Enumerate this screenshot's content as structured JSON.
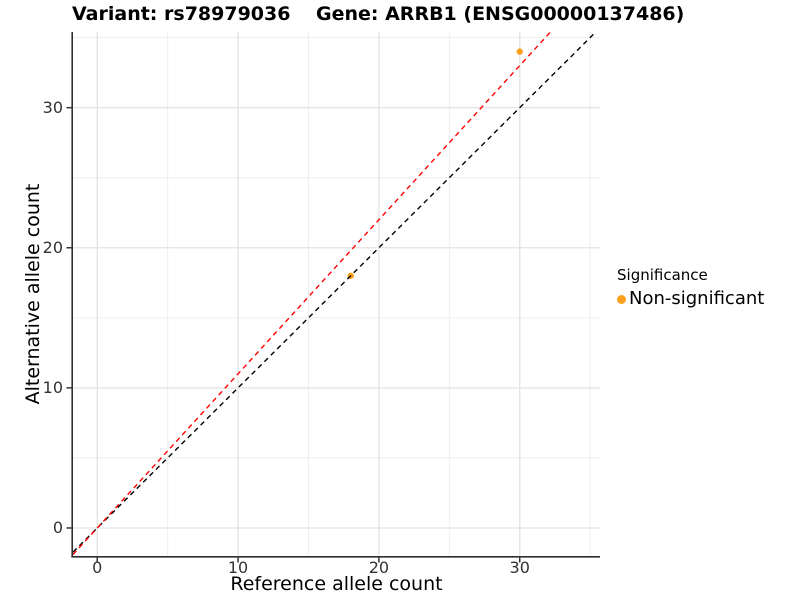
{
  "header": {
    "variant_title": "Variant: rs78979036",
    "gene_title": "Gene: ARRB1 (ENSG00000137486)"
  },
  "legend": {
    "title": "Significance",
    "items": [
      {
        "label": "Non-significant",
        "color": "#F9A11B",
        "shape": "circle"
      }
    ]
  },
  "colors": {
    "point": "#F9A11B",
    "identity_line": "#000000",
    "fitted_line": "#FF0000",
    "major_grid": "#E3E3E3",
    "minor_grid": "#EDEDED",
    "axis_line": "#2F2F2F",
    "tick_mark": "#333333",
    "tick_label": "#333333"
  },
  "chart_data": {
    "type": "scatter",
    "title": "Variant: rs78979036  Gene: ARRB1 (ENSG00000137486)",
    "xlabel": "Reference allele count",
    "ylabel": "Alternative allele count",
    "xlim": [
      -1.72,
      35.7
    ],
    "ylim": [
      -2.0,
      35.4
    ],
    "x_ticks": [
      0,
      10,
      20,
      30
    ],
    "y_ticks": [
      0,
      10,
      20,
      30
    ],
    "x_minor_ticks": [
      5,
      15,
      25,
      35
    ],
    "y_minor_ticks": [
      5,
      15,
      25,
      35
    ],
    "grid": true,
    "legend_position": "right",
    "series": [
      {
        "name": "Non-significant",
        "color": "#F9A11B",
        "points": [
          {
            "x": 18,
            "y": 18
          },
          {
            "x": 30,
            "y": 34
          }
        ]
      }
    ],
    "reference_lines": [
      {
        "name": "identity",
        "slope": 1.0,
        "intercept": 0,
        "color": "#000000",
        "linetype": "dashed"
      },
      {
        "name": "allelic-ratio-fit",
        "slope": 1.1,
        "intercept": 0,
        "color": "#FF0000",
        "linetype": "dashed"
      }
    ]
  }
}
